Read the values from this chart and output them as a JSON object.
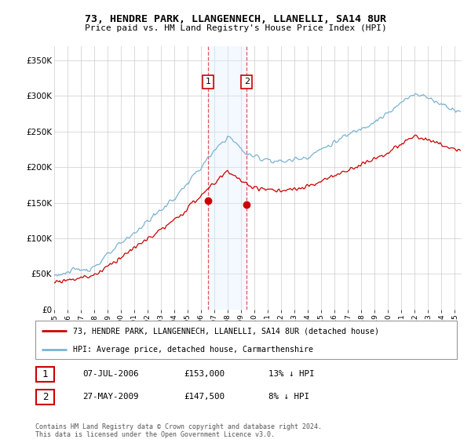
{
  "title": "73, HENDRE PARK, LLANGENNECH, LLANELLI, SA14 8UR",
  "subtitle": "Price paid vs. HM Land Registry's House Price Index (HPI)",
  "ylabel_ticks": [
    "£0",
    "£50K",
    "£100K",
    "£150K",
    "£200K",
    "£250K",
    "£300K",
    "£350K"
  ],
  "ytick_values": [
    0,
    50000,
    100000,
    150000,
    200000,
    250000,
    300000,
    350000
  ],
  "ylim": [
    0,
    370000
  ],
  "xlim_start": 1995.0,
  "xlim_end": 2025.5,
  "hpi_color": "#7ab3d4",
  "price_color": "#cc0000",
  "shading_color": "#ddeeff",
  "dashed_color": "#dd4444",
  "transaction1_date": 2006.52,
  "transaction1_price": 153000,
  "transaction2_date": 2009.41,
  "transaction2_price": 147500,
  "legend_label_red": "73, HENDRE PARK, LLANGENNECH, LLANELLI, SA14 8UR (detached house)",
  "legend_label_blue": "HPI: Average price, detached house, Carmarthenshire",
  "table_rows": [
    [
      "1",
      "07-JUL-2006",
      "£153,000",
      "13% ↓ HPI"
    ],
    [
      "2",
      "27-MAY-2009",
      "£147,500",
      "8% ↓ HPI"
    ]
  ],
  "footer": "Contains HM Land Registry data © Crown copyright and database right 2024.\nThis data is licensed under the Open Government Licence v3.0.",
  "xtick_years": [
    1995,
    1996,
    1997,
    1998,
    1999,
    2000,
    2001,
    2002,
    2003,
    2004,
    2005,
    2006,
    2007,
    2008,
    2009,
    2010,
    2011,
    2012,
    2013,
    2014,
    2015,
    2016,
    2017,
    2018,
    2019,
    2020,
    2021,
    2022,
    2023,
    2024,
    2025
  ]
}
